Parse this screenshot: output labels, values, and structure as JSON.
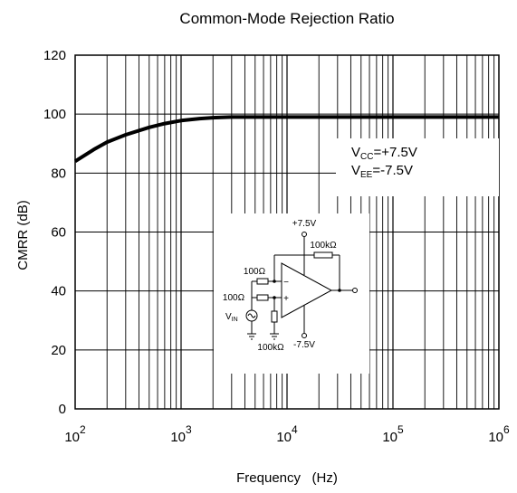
{
  "chart_data": {
    "type": "line",
    "title": "Common-Mode Rejection Ratio",
    "xlabel": "Frequency   (Hz)",
    "ylabel": "CMRR (dB)",
    "x_scale": "log",
    "xlim": [
      100,
      1000000
    ],
    "ylim": [
      0,
      120
    ],
    "grid": true,
    "x_ticks": [
      {
        "base": "10",
        "exp": "2"
      },
      {
        "base": "10",
        "exp": "3"
      },
      {
        "base": "10",
        "exp": "4"
      },
      {
        "base": "10",
        "exp": "5"
      },
      {
        "base": "10",
        "exp": "6"
      }
    ],
    "y_ticks": [
      "0",
      "20",
      "40",
      "60",
      "80",
      "100",
      "120"
    ],
    "series": [
      {
        "x": [
          100,
          150,
          200,
          300,
          500,
          700,
          1000,
          1500,
          2000,
          3000,
          5000,
          10000,
          100000,
          1000000
        ],
        "y": [
          84,
          88,
          90.5,
          93,
          95.5,
          96.8,
          97.8,
          98.5,
          98.8,
          99,
          99,
          99,
          99,
          99
        ]
      }
    ],
    "annotation": {
      "lines": [
        {
          "main": "V",
          "sub": "CC",
          "rest": "=+7.5V"
        },
        {
          "main": "V",
          "sub": "EE",
          "rest": "=-7.5V"
        }
      ]
    },
    "inset_schematic": {
      "labels": {
        "vcc": "+7.5V",
        "vee": "-7.5V",
        "r_feedback": "100kΩ",
        "r_in_top": "100Ω",
        "r_in_bottom": "100Ω",
        "r_ground": "100kΩ",
        "minus": "−",
        "plus": "+",
        "vin_main": "V",
        "vin_sub": "IN"
      }
    }
  }
}
